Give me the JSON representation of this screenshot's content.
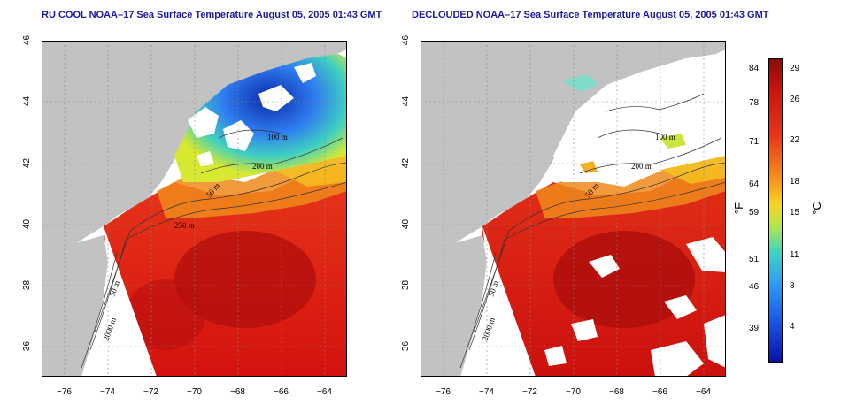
{
  "panels": [
    {
      "id": "raw",
      "title": "RU COOL NOAA–17 Sea Surface Temperature August 05, 2005 01:43 GMT"
    },
    {
      "id": "declouded",
      "title": "DECLOUDED NOAA–17 Sea Surface Temperature August 05, 2005 01:43 GMT"
    }
  ],
  "lat_ticks": [
    "46",
    "44",
    "42",
    "40",
    "38",
    "36"
  ],
  "lon_ticks": [
    "−76",
    "−74",
    "−72",
    "−70",
    "−68",
    "−66",
    "−64"
  ],
  "contour_labels": [
    "100 m",
    "200 m",
    "50 m",
    "250 m",
    "50 m",
    "2000 m"
  ],
  "colorbar": {
    "fahrenheit_unit": "°F",
    "celsius_unit": "°C",
    "fahrenheit_ticks": [
      "84",
      "78",
      "71",
      "64",
      "59",
      "51",
      "46",
      "39"
    ],
    "celsius_ticks": [
      "29",
      "26",
      "22",
      "18",
      "15",
      "11",
      "8",
      "4"
    ]
  },
  "colors": {
    "land": "#c2c2c2",
    "warm": "#dd1a10",
    "hot": "#b00d0d",
    "mid": "#f08a1a",
    "cool": "#2f7df0",
    "cold": "#0a2aa8",
    "cloud": "#ffffff"
  }
}
